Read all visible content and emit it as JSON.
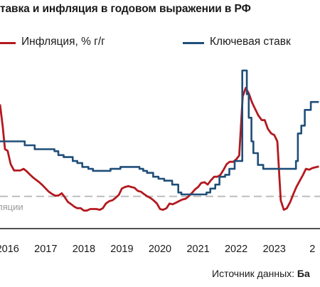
{
  "chart_data": {
    "type": "line",
    "title": "тавка и инфляция в годовом выражении в РФ",
    "xlabel": "",
    "ylabel": "",
    "xlim": [
      2015.8,
      2024.2
    ],
    "ylim": [
      0,
      21
    ],
    "x_ticks": [
      "2016",
      "2017",
      "2018",
      "2019",
      "2020",
      "2021",
      "2022",
      "2023"
    ],
    "x_tick_values": [
      2016,
      2017,
      2018,
      2019,
      2020,
      2021,
      2022,
      2023
    ],
    "x_tick_partial": {
      "label": "2",
      "x": 2024
    },
    "grid": false,
    "legend_position": "top",
    "colors": {
      "inflation": "#b3191f",
      "key_rate": "#1f4e79",
      "target": "#bdbdbd"
    },
    "series": [
      {
        "name": "Инфляция, % г/г",
        "color": "#b3191f",
        "x": [
          2015.8,
          2015.87,
          2015.93,
          2016.0,
          2016.08,
          2016.17,
          2016.25,
          2016.33,
          2016.42,
          2016.5,
          2016.58,
          2016.67,
          2016.75,
          2016.83,
          2016.92,
          2017.0,
          2017.08,
          2017.17,
          2017.25,
          2017.33,
          2017.42,
          2017.5,
          2017.58,
          2017.67,
          2017.75,
          2017.83,
          2017.92,
          2018.0,
          2018.08,
          2018.17,
          2018.25,
          2018.33,
          2018.42,
          2018.5,
          2018.58,
          2018.67,
          2018.75,
          2018.83,
          2018.92,
          2019.0,
          2019.08,
          2019.17,
          2019.25,
          2019.33,
          2019.42,
          2019.5,
          2019.58,
          2019.67,
          2019.75,
          2019.83,
          2019.92,
          2020.0,
          2020.08,
          2020.17,
          2020.25,
          2020.33,
          2020.42,
          2020.5,
          2020.58,
          2020.67,
          2020.75,
          2020.83,
          2020.92,
          2021.0,
          2021.08,
          2021.17,
          2021.25,
          2021.33,
          2021.42,
          2021.5,
          2021.58,
          2021.67,
          2021.75,
          2021.83,
          2021.92,
          2022.0,
          2022.08,
          2022.17,
          2022.25,
          2022.33,
          2022.42,
          2022.5,
          2022.58,
          2022.67,
          2022.75,
          2022.83,
          2022.92,
          2023.0,
          2023.08,
          2023.17,
          2023.25,
          2023.33,
          2023.42,
          2023.5,
          2023.58,
          2023.67,
          2023.75,
          2023.83,
          2023.92,
          2024.0,
          2024.08,
          2024.17
        ],
        "values": [
          15.7,
          13.0,
          10.0,
          9.8,
          8.1,
          7.3,
          7.3,
          7.3,
          7.5,
          7.2,
          6.8,
          6.4,
          6.1,
          5.8,
          5.4,
          5.0,
          4.6,
          4.3,
          4.1,
          4.1,
          4.4,
          3.9,
          3.3,
          3.0,
          2.7,
          2.5,
          2.5,
          2.2,
          2.2,
          2.4,
          2.4,
          2.4,
          2.3,
          2.5,
          3.1,
          3.4,
          3.5,
          3.8,
          4.2,
          5.0,
          5.2,
          5.3,
          5.2,
          5.1,
          4.7,
          4.6,
          4.3,
          4.0,
          3.8,
          3.5,
          3.1,
          2.4,
          2.3,
          2.5,
          3.1,
          3.0,
          3.2,
          3.4,
          3.6,
          3.7,
          4.0,
          4.4,
          4.9,
          5.2,
          5.7,
          5.8,
          5.5,
          6.0,
          6.5,
          6.5,
          6.7,
          7.4,
          8.1,
          8.4,
          8.4,
          8.7,
          9.2,
          16.7,
          17.8,
          17.1,
          15.9,
          15.1,
          14.3,
          13.7,
          13.7,
          12.6,
          12.0,
          11.8,
          11.0,
          3.5,
          2.3,
          2.5,
          3.3,
          4.3,
          5.2,
          6.0,
          6.7,
          7.5,
          7.4,
          7.6,
          7.7,
          7.8
        ]
      },
      {
        "name": "Ключевая ставк",
        "color": "#1f4e79",
        "step": true,
        "x": [
          2015.8,
          2016.45,
          2016.71,
          2017.23,
          2017.33,
          2017.47,
          2017.71,
          2017.83,
          2017.96,
          2018.12,
          2018.24,
          2018.7,
          2018.96,
          2019.46,
          2019.56,
          2019.66,
          2019.82,
          2019.96,
          2020.11,
          2020.32,
          2020.48,
          2020.56,
          2021.22,
          2021.32,
          2021.45,
          2021.56,
          2021.71,
          2021.82,
          2021.96,
          2022.16,
          2022.28,
          2022.33,
          2022.4,
          2022.45,
          2022.57,
          2022.71,
          2023.57,
          2023.62,
          2023.71,
          2023.8,
          2023.96,
          2024.17
        ],
        "values": [
          11.0,
          10.5,
          10.0,
          9.75,
          9.25,
          9.0,
          8.5,
          8.25,
          7.75,
          7.5,
          7.25,
          7.5,
          7.75,
          7.5,
          7.25,
          7.0,
          6.5,
          6.25,
          6.0,
          5.5,
          4.5,
          4.25,
          4.5,
          5.0,
          5.5,
          6.5,
          6.75,
          7.5,
          8.5,
          20.0,
          17.0,
          14.0,
          11.0,
          9.5,
          8.0,
          7.5,
          8.5,
          12.0,
          13.0,
          15.0,
          16.0,
          16.0
        ]
      }
    ],
    "target": {
      "value": 4.0,
      "label": "ляции",
      "style": "dashed"
    }
  },
  "legend": {
    "inflation_label": "Инфляция, % г/г",
    "keyrate_label": "Ключевая ставк"
  },
  "source": {
    "prefix": "Источник данных:",
    "name": "Ба"
  }
}
